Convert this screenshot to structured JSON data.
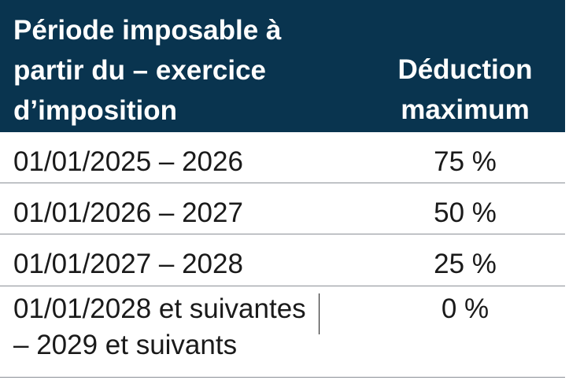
{
  "table": {
    "headers": [
      "Période imposable à partir du – exercice d’imposition",
      "Déduction maximum"
    ],
    "header_col1_lines": [
      "Période imposable à",
      "partir du – exercice",
      "d’imposition"
    ],
    "header_col2_lines": [
      "Déduction",
      "maximum"
    ],
    "rows": [
      {
        "period": "01/01/2025 – 2026",
        "deduction": "75 %"
      },
      {
        "period": "01/01/2026 – 2027",
        "deduction": "50 %"
      },
      {
        "period": "01/01/2027 – 2028",
        "deduction": "25 %"
      },
      {
        "period_lines": [
          "01/01/2028 et suivantes",
          "– 2029 et suivants"
        ],
        "deduction": "0 %"
      }
    ]
  },
  "colors": {
    "header_background": "#09344f",
    "header_text": "#ffffff",
    "body_text": "#1a1a1a",
    "rule": "#8a8f96"
  }
}
